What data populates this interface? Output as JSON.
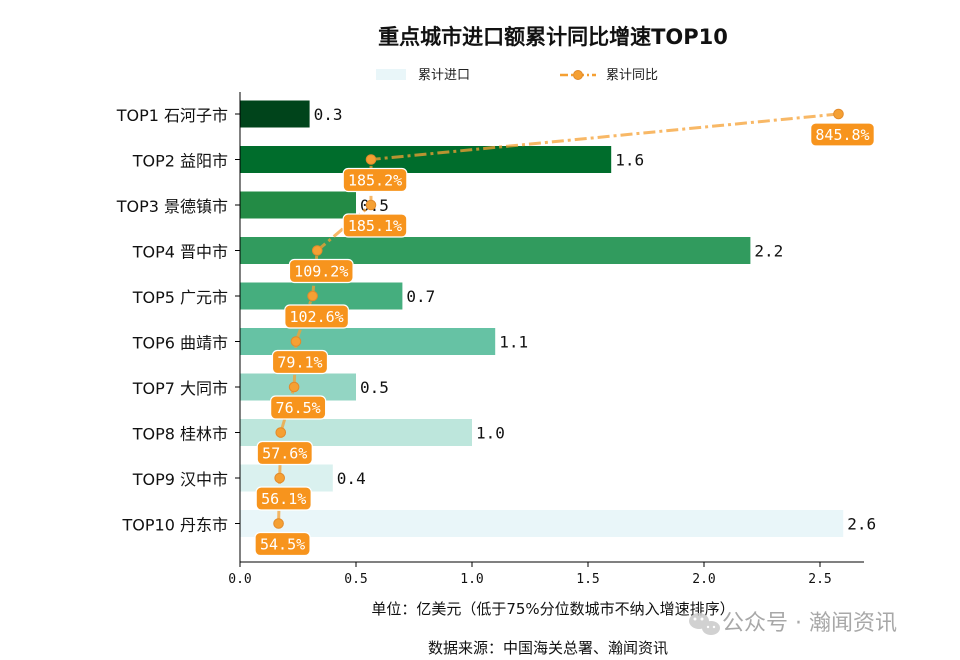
{
  "chart_data": {
    "type": "bar",
    "title": "重点城市进口额累计同比增速TOP10",
    "legend": {
      "position": "top-center",
      "items": [
        {
          "label": "累计进口",
          "kind": "bar"
        },
        {
          "label": "累计同比",
          "kind": "line"
        }
      ]
    },
    "categories": [
      "TOP1 石河子市",
      "TOP2 益阳市",
      "TOP3 景德镇市",
      "TOP4 晋中市",
      "TOP5 广元市",
      "TOP6 曲靖市",
      "TOP7 大同市",
      "TOP8 桂林市",
      "TOP9 汉中市",
      "TOP10 丹东市"
    ],
    "series": [
      {
        "name": "累计进口",
        "values": [
          0.3,
          1.6,
          0.5,
          2.2,
          0.7,
          1.1,
          0.5,
          1.0,
          0.4,
          2.6
        ],
        "labels": [
          "0.3",
          "1.6",
          "0.5",
          "2.2",
          "0.7",
          "1.1",
          "0.5",
          "1.0",
          "0.4",
          "2.6"
        ],
        "colors": [
          "#00441b",
          "#006d2c",
          "#238b45",
          "#319b5e",
          "#45ae7e",
          "#66c2a4",
          "#93d5c3",
          "#bde6dc",
          "#daf1ef",
          "#e9f6f9"
        ]
      },
      {
        "name": "累计同比",
        "values": [
          845.8,
          185.2,
          185.1,
          109.2,
          102.6,
          79.1,
          76.5,
          57.6,
          56.1,
          54.5
        ],
        "labels": [
          "845.8%",
          "185.2%",
          "185.1%",
          "109.2%",
          "102.6%",
          "79.1%",
          "76.5%",
          "57.6%",
          "56.1%",
          "54.5%"
        ],
        "color": "#f5a033",
        "label_bg": "#f7941d",
        "style": "dash-dot"
      }
    ],
    "xlim": [
      0,
      2.7
    ],
    "xticks": [
      "0.0",
      "0.5",
      "1.0",
      "1.5",
      "2.0",
      "2.5"
    ],
    "xlabel": "单位：亿美元（低于75%分位数城市不纳入增速排序）",
    "source": "数据来源：中国海关总署、瀚闻资讯",
    "grid": false
  },
  "watermark": {
    "text": "公众号 · 瀚闻资讯",
    "icon": "wechat-icon"
  }
}
